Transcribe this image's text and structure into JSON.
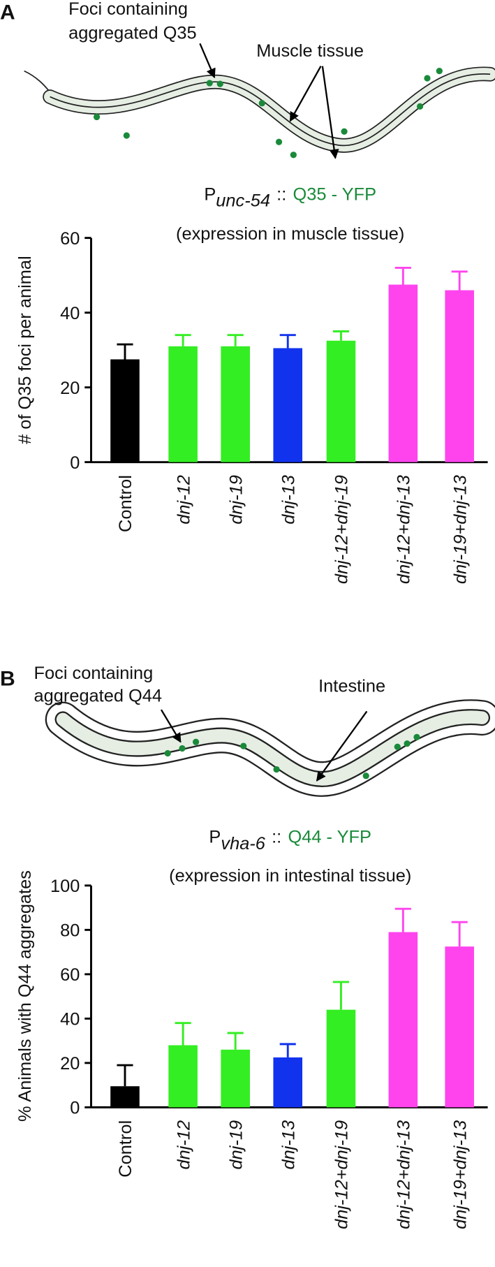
{
  "chart_data": [
    {
      "type": "bar",
      "panel_label": "A",
      "annotations": [
        "Foci containing",
        "aggregated Q35",
        "Muscle tissue"
      ],
      "title_prefix": "P",
      "title_subscript": "unc-54",
      "title_separator": "::",
      "title_construct": "Q35 - YFP",
      "subtitle": "(expression in muscle tissue)",
      "y_label": "# of Q35 foci per animal",
      "categories": [
        "Control",
        "dnj-12",
        "dnj-19",
        "dnj-13",
        "dnj-12+dnj-19",
        "dnj-12+dnj-13",
        "dnj-19+dnj-13"
      ],
      "italic_categories": [
        false,
        true,
        true,
        true,
        true,
        true,
        true
      ],
      "values": [
        27.5,
        31,
        31,
        30.5,
        32.5,
        47.5,
        46
      ],
      "errors": [
        4,
        3,
        3,
        3.5,
        2.5,
        4.5,
        5
      ],
      "colors": [
        "#000000",
        "#33ee22",
        "#33ee22",
        "#1133ee",
        "#33ee22",
        "#ff44ee",
        "#ff44ee"
      ],
      "ylim": [
        0,
        60
      ],
      "yticks": [
        0,
        20,
        40,
        60
      ]
    },
    {
      "type": "bar",
      "panel_label": "B",
      "annotations": [
        "Foci containing",
        "aggregated Q44",
        "Intestine"
      ],
      "title_prefix": "P",
      "title_subscript": "vha-6",
      "title_separator": "::",
      "title_construct": "Q44 - YFP",
      "subtitle": "(expression in intestinal tissue)",
      "y_label": "% Animals with Q44 aggregates",
      "categories": [
        "Control",
        "dnj-12",
        "dnj-19",
        "dnj-13",
        "dnj-12+dnj-19",
        "dnj-12+dnj-13",
        "dnj-19+dnj-13"
      ],
      "italic_categories": [
        false,
        true,
        true,
        true,
        true,
        true,
        true
      ],
      "values": [
        9.5,
        28,
        26,
        22.5,
        44,
        79,
        72.5
      ],
      "errors": [
        9.5,
        10,
        7.5,
        6,
        12.5,
        10.5,
        11
      ],
      "colors": [
        "#000000",
        "#33ee22",
        "#33ee22",
        "#1133ee",
        "#33ee22",
        "#ff44ee",
        "#ff44ee"
      ],
      "ylim": [
        0,
        100
      ],
      "yticks": [
        0,
        20,
        40,
        60,
        80,
        100
      ]
    }
  ]
}
